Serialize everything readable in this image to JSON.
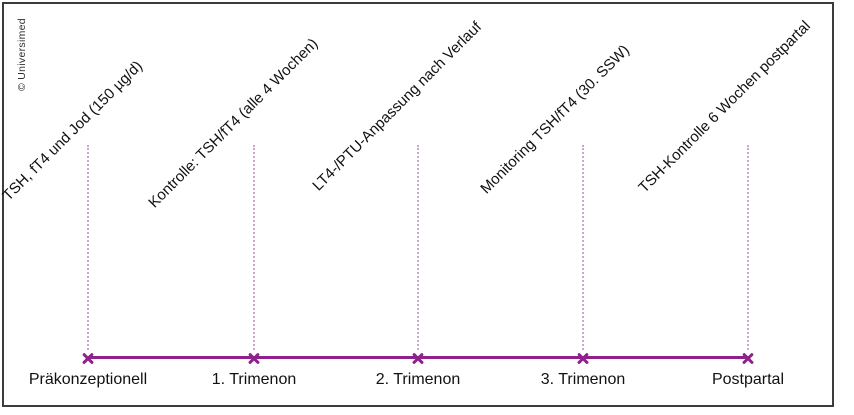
{
  "figure": {
    "copyright": "© Universimed"
  },
  "colors": {
    "accent": "#8f218c",
    "dotted_line": "#d2a4cd",
    "text": "#111111",
    "frame_border": "#3c3c3c"
  },
  "timeline": {
    "points": [
      {
        "stage": "Präkonzeptionell",
        "annotation": "TSH, fT4 und Jod (150 µg/d)"
      },
      {
        "stage": "1. Trimenon",
        "annotation": "Kontrolle: TSH/fT4 (alle 4 Wochen)"
      },
      {
        "stage": "2. Trimenon",
        "annotation": "LT4-/PTU-Anpassung nach Verlauf"
      },
      {
        "stage": "3. Trimenon",
        "annotation": "Monitoring TSH/fT4 (30. SSW)"
      },
      {
        "stage": "Postpartal",
        "annotation": "TSH-Kontrolle 6 Wochen postpartal"
      }
    ]
  }
}
